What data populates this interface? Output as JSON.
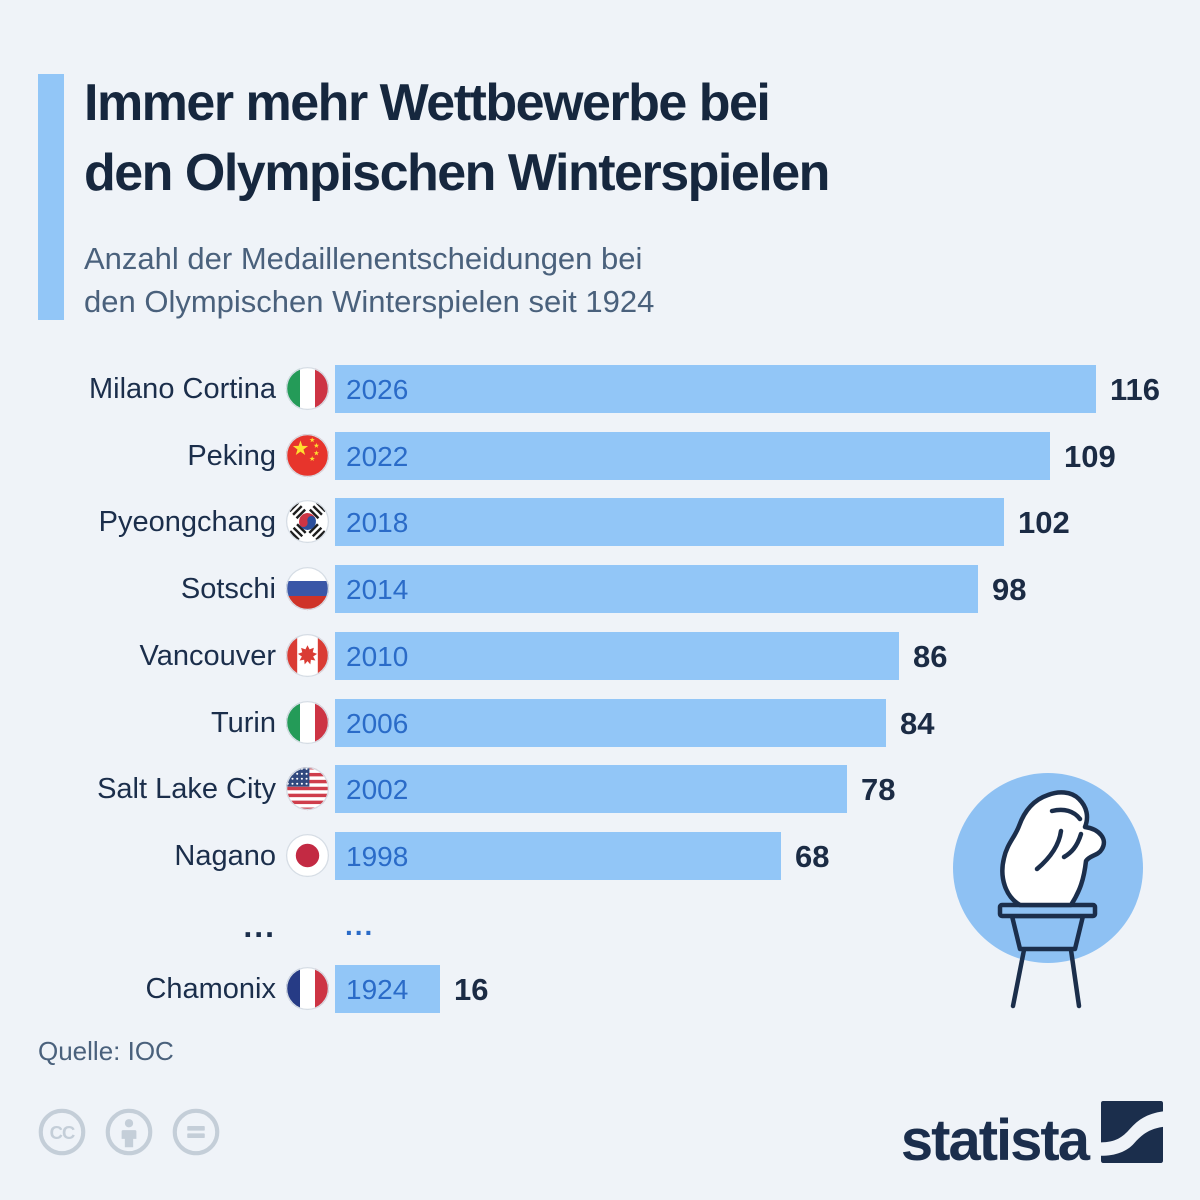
{
  "header": {
    "title_line1": "Immer mehr Wettbewerbe bei",
    "title_line2": "den Olympischen Winterspielen",
    "subtitle_line1": "Anzahl der Medaillenentscheidungen bei",
    "subtitle_line2": "den Olympischen Winterspielen seit 1924",
    "accent_color": "#92c6f7"
  },
  "chart_data": {
    "type": "bar",
    "orientation": "horizontal",
    "title": "Immer mehr Wettbewerbe bei den Olympischen Winterspielen",
    "subtitle": "Anzahl der Medaillenentscheidungen bei den Olympischen Winterspielen seit 1924",
    "xlim": [
      0,
      116
    ],
    "grid": false,
    "legend": false,
    "bar_color": "#92c6f7",
    "year_label_color": "#2a6bc8",
    "value_label_color": "#1b2b44",
    "rows": [
      {
        "city": "Milano Cortina",
        "flag": "italy",
        "year": "2026",
        "value": 116
      },
      {
        "city": "Peking",
        "flag": "china",
        "year": "2022",
        "value": 109
      },
      {
        "city": "Pyeongchang",
        "flag": "south-korea",
        "year": "2018",
        "value": 102
      },
      {
        "city": "Sotschi",
        "flag": "russia",
        "year": "2014",
        "value": 98
      },
      {
        "city": "Vancouver",
        "flag": "canada",
        "year": "2010",
        "value": 86
      },
      {
        "city": "Turin",
        "flag": "italy",
        "year": "2006",
        "value": 84
      },
      {
        "city": "Salt Lake City",
        "flag": "usa",
        "year": "2002",
        "value": 78
      },
      {
        "city": "Nagano",
        "flag": "japan",
        "year": "1998",
        "value": 68
      },
      {
        "ellipsis": true,
        "label": "...",
        "bar_label": "..."
      },
      {
        "city": "Chamonix",
        "flag": "france",
        "year": "1924",
        "value": 16
      }
    ]
  },
  "footer": {
    "source": "Quelle: IOC",
    "license_icons": [
      "cc-icon",
      "attribution-person-icon",
      "no-derivatives-equals-icon"
    ],
    "brand": "statista"
  },
  "decorations": {
    "torch_icon": "olympic-torch-icon",
    "torch_circle_color": "#8ec1f3"
  }
}
